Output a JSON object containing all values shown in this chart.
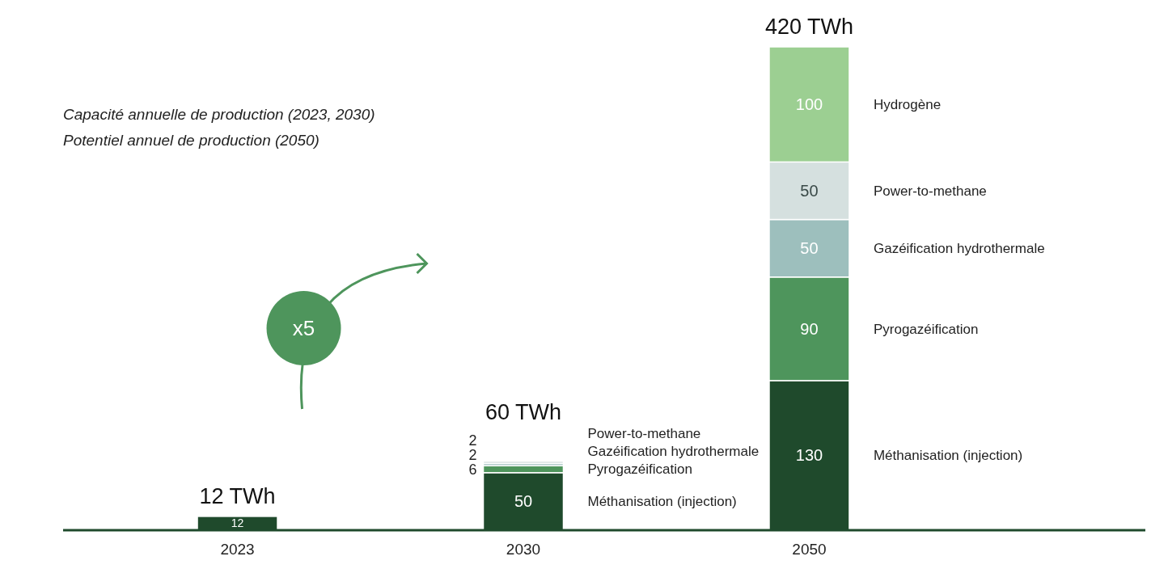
{
  "chart_data": {
    "type": "bar",
    "stacked": true,
    "data_labels": true,
    "categories": [
      "2023",
      "2030",
      "2050"
    ],
    "series": [
      {
        "name": "Méthanisation (injection)",
        "color": "#1f4a2c",
        "values": [
          12,
          50,
          130
        ]
      },
      {
        "name": "Pyrogazéification",
        "color": "#4e955c",
        "values": [
          null,
          6,
          90
        ]
      },
      {
        "name": "Gazéification hydrothermale",
        "color": "#9dbfbd",
        "values": [
          null,
          2,
          50
        ]
      },
      {
        "name": "Power-to-methane",
        "color": "#d5e0df",
        "values": [
          null,
          2,
          50
        ]
      },
      {
        "name": "Hydrogène",
        "color": "#9ccf92",
        "values": [
          null,
          null,
          100
        ]
      }
    ],
    "totals": [
      "12 TWh",
      "60 TWh",
      "420 TWh"
    ],
    "annotations": [
      "Capacité annuelle de production (2023, 2030)",
      "Potentiel annuel de production (2050)",
      "x5"
    ]
  }
}
